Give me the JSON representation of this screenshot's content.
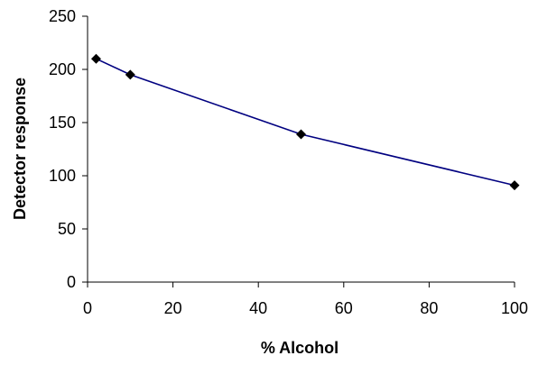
{
  "chart_data": {
    "type": "line",
    "title": "",
    "xlabel": "% Alcohol",
    "ylabel": "Detector response",
    "xlim": [
      0,
      100
    ],
    "ylim": [
      0,
      250
    ],
    "xticks": [
      0,
      20,
      40,
      60,
      80,
      100
    ],
    "yticks": [
      0,
      50,
      100,
      150,
      200,
      250
    ],
    "grid": false,
    "legend": "none",
    "series": [
      {
        "x": [
          2,
          10,
          50,
          100
        ],
        "y": [
          210,
          195,
          139,
          91
        ],
        "color": "#000080",
        "marker": "diamond",
        "marker_color": "#000000"
      }
    ]
  }
}
